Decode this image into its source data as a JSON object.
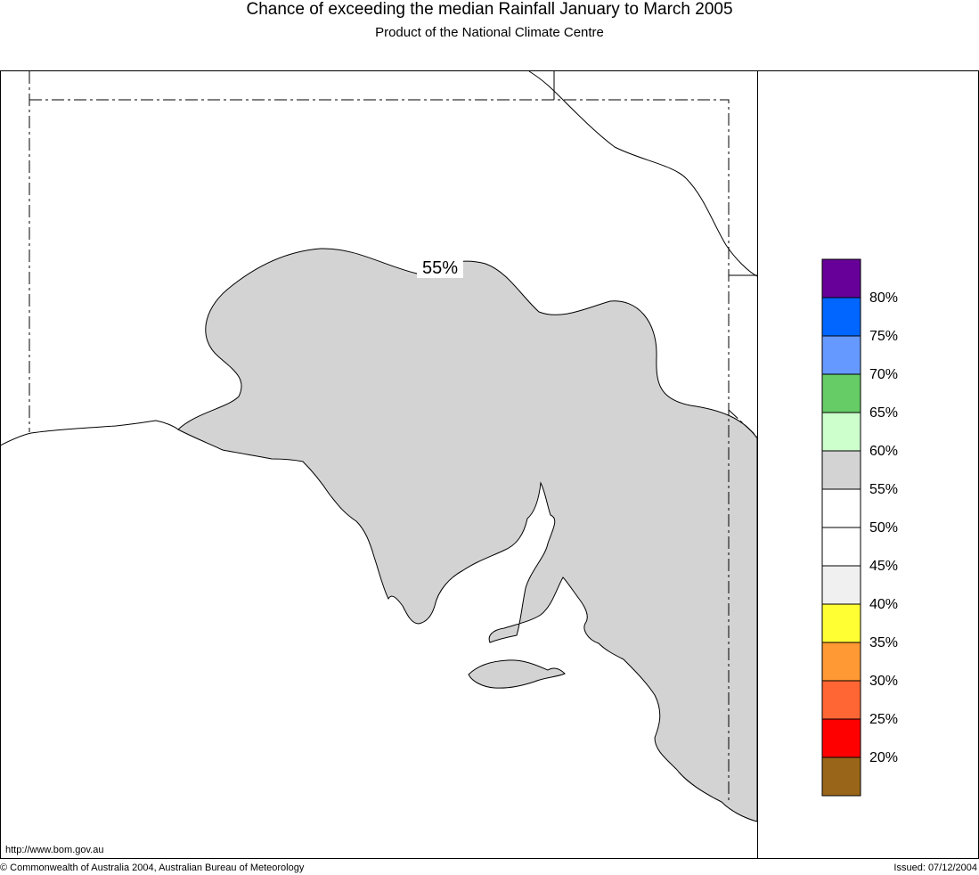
{
  "header": {
    "title": "Chance of exceeding the median Rainfall January to March 2005",
    "subtitle": "Product of the National Climate Centre"
  },
  "map": {
    "region_label": "55%",
    "region_color": "#d3d3d3"
  },
  "legend": {
    "swatches": [
      {
        "color": "#660099"
      },
      {
        "color": "#0066ff",
        "label": "80%"
      },
      {
        "color": "#6699ff",
        "label": "75%"
      },
      {
        "color": "#66cc66",
        "label": "70%"
      },
      {
        "color": "#ccffcc",
        "label": "65%"
      },
      {
        "color": "#d3d3d3",
        "label": "60%"
      },
      {
        "color": "#ffffff",
        "label": "55%"
      },
      {
        "color": "#ffffff",
        "label": "50%"
      },
      {
        "color": "#f0f0f0",
        "label": "45%"
      },
      {
        "color": "#ffff33",
        "label": "40%"
      },
      {
        "color": "#ff9933",
        "label": "35%"
      },
      {
        "color": "#ff6633",
        "label": "30%"
      },
      {
        "color": "#ff0000",
        "label": "25%"
      },
      {
        "color": "#996619",
        "label": "20%"
      }
    ]
  },
  "footer": {
    "url": "http://www.bom.gov.au",
    "copyright": "© Commonwealth of Australia 2004, Australian Bureau of Meteorology",
    "issued": "Issued: 07/12/2004"
  }
}
